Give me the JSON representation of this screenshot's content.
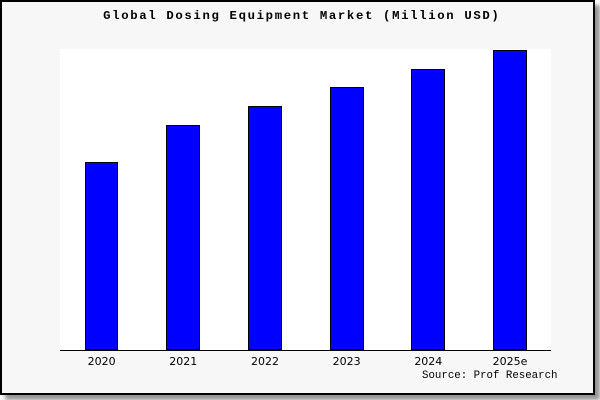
{
  "chart_data": {
    "type": "bar",
    "title": "Global Dosing Equipment Market (Million USD)",
    "categories": [
      "2020",
      "2021",
      "2022",
      "2023",
      "2024",
      "2025e"
    ],
    "values": [
      62.4,
      74.7,
      81.0,
      87.3,
      93.3,
      99.6
    ],
    "ylim": [
      0,
      100
    ],
    "xlabel": "",
    "ylabel": "",
    "y_axis_visible": false,
    "grid": false,
    "legend": false,
    "bar_color": "#0000fe",
    "bar_edge_color": "#000000"
  },
  "source_credit": "Source: Prof Research",
  "colors": {
    "figure_background": "#f7f7f7",
    "plot_background": "#ffffff",
    "frame_border": "#000000",
    "axis_line": "#000000",
    "title_text": "#000000",
    "shadow": "#3c3c3c"
  }
}
